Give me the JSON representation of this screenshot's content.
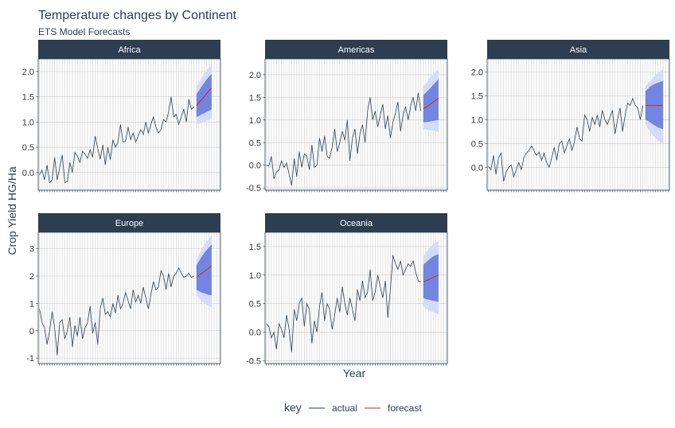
{
  "chart_data": {
    "type": "line",
    "title": "Temperature changes by Continent",
    "subtitle": "ETS Model Forecasts",
    "xlabel": "Year",
    "ylabel": "Crop Yield HG/Ha",
    "legend": {
      "position": "bottom",
      "title": "key",
      "entries": [
        {
          "label": "actual",
          "color": "#2c3e50"
        },
        {
          "label": "forecast",
          "color": "#e31a1c"
        }
      ]
    },
    "colors": {
      "actual": "#2c3e50",
      "forecast": "#e31a1c",
      "band80": "#7285e0",
      "band95": "#d4dbfb",
      "strip": "#2c3e50",
      "grid": "#cccccc"
    },
    "x_index": "year index 1-62 (tick labels not printed)",
    "panels": [
      {
        "name": "Africa",
        "ylim": [
          -0.35,
          2.25
        ],
        "yticks": [
          0.0,
          0.5,
          1.0,
          1.5,
          2.0
        ],
        "ytick_labels": [
          "0.0",
          "0.5",
          "1.0",
          "1.5",
          "2.0"
        ],
        "actual": [
          -0.05,
          0.05,
          -0.15,
          0.15,
          -0.2,
          -0.15,
          0.3,
          -0.15,
          0.1,
          0.35,
          -0.2,
          -0.18,
          0.2,
          0.0,
          0.4,
          0.32,
          0.2,
          0.42,
          0.36,
          0.28,
          0.45,
          0.3,
          0.72,
          0.48,
          0.26,
          0.55,
          0.15,
          0.5,
          0.25,
          0.65,
          0.5,
          0.6,
          0.95,
          0.6,
          0.62,
          0.9,
          0.65,
          0.78,
          0.6,
          0.72,
          0.85,
          0.75,
          1.0,
          0.78,
          0.95,
          1.1,
          0.9,
          0.78,
          0.85,
          1.05,
          1.0,
          1.2,
          1.5,
          1.1,
          1.15,
          0.95,
          1.1,
          1.25,
          1.0,
          1.45,
          1.25,
          1.3
        ],
        "forecast": [
          1.32,
          1.38,
          1.44,
          1.5,
          1.56,
          1.62,
          1.67
        ],
        "lo80": [
          1.1,
          1.12,
          1.15,
          1.17,
          1.2,
          1.22,
          1.25
        ],
        "hi80": [
          1.55,
          1.62,
          1.7,
          1.77,
          1.84,
          1.9,
          1.95
        ],
        "lo95": [
          0.95,
          0.97,
          0.98,
          1.0,
          1.02,
          1.04,
          1.05
        ],
        "hi95": [
          1.7,
          1.78,
          1.86,
          1.95,
          2.02,
          2.08,
          2.12
        ]
      },
      {
        "name": "Americas",
        "ylim": [
          -0.55,
          2.35
        ],
        "yticks": [
          -0.5,
          0.0,
          0.5,
          1.0,
          1.5,
          2.0
        ],
        "ytick_labels": [
          "-0.5",
          "0.0",
          "0.5",
          "1.0",
          "1.5",
          "2.0"
        ],
        "actual": [
          0.0,
          -0.02,
          0.2,
          -0.3,
          -0.15,
          -0.1,
          0.1,
          -0.05,
          0.05,
          -0.2,
          -0.45,
          0.15,
          -0.25,
          0.3,
          -0.05,
          0.25,
          0.2,
          -0.1,
          0.45,
          -0.05,
          0.0,
          0.6,
          0.3,
          0.65,
          0.2,
          0.15,
          0.4,
          0.8,
          0.3,
          0.5,
          0.75,
          0.55,
          1.0,
          0.1,
          0.6,
          0.8,
          0.25,
          0.7,
          0.9,
          0.5,
          1.2,
          1.5,
          1.0,
          1.2,
          0.85,
          1.1,
          1.35,
          0.8,
          1.1,
          0.6,
          0.95,
          1.15,
          1.4,
          0.75,
          1.1,
          1.3,
          1.0,
          1.3,
          1.5,
          1.2,
          1.6,
          1.2
        ],
        "forecast": [
          1.25,
          1.28,
          1.32,
          1.36,
          1.4,
          1.44,
          1.48
        ],
        "lo80": [
          0.95,
          0.95,
          0.96,
          0.97,
          0.98,
          0.99,
          1.0
        ],
        "hi80": [
          1.55,
          1.6,
          1.66,
          1.72,
          1.78,
          1.84,
          1.9
        ],
        "lo95": [
          0.8,
          0.79,
          0.78,
          0.77,
          0.76,
          0.75,
          0.74
        ],
        "hi95": [
          1.75,
          1.8,
          1.88,
          1.96,
          2.02,
          2.08,
          2.12
        ]
      },
      {
        "name": "Asia",
        "ylim": [
          -0.48,
          2.28
        ],
        "yticks": [
          0.0,
          0.5,
          1.0,
          1.5,
          2.0
        ],
        "ytick_labels": [
          "0.0",
          "0.5",
          "1.0",
          "1.5",
          "2.0"
        ],
        "actual": [
          0.02,
          -0.05,
          0.25,
          -0.15,
          0.2,
          0.3,
          -0.3,
          -0.1,
          0.0,
          0.05,
          -0.2,
          -0.05,
          0.1,
          -0.05,
          0.2,
          0.3,
          0.35,
          0.45,
          0.35,
          0.25,
          0.32,
          0.15,
          0.3,
          0.1,
          0.0,
          0.2,
          0.42,
          0.15,
          0.5,
          0.55,
          0.3,
          0.45,
          0.6,
          0.35,
          0.55,
          0.85,
          0.6,
          0.55,
          1.1,
          1.0,
          0.75,
          1.05,
          0.9,
          1.1,
          0.85,
          1.2,
          1.0,
          0.9,
          1.05,
          1.2,
          0.7,
          1.0,
          1.25,
          0.75,
          1.1,
          1.35,
          1.3,
          1.45,
          1.3,
          1.25,
          1.0,
          1.3
        ],
        "forecast": [
          1.3,
          1.3,
          1.3,
          1.3,
          1.3,
          1.3,
          1.3,
          1.3
        ],
        "lo80": [
          1.0,
          0.98,
          0.94,
          0.9,
          0.87,
          0.84,
          0.82,
          0.8
        ],
        "hi80": [
          1.6,
          1.65,
          1.7,
          1.73,
          1.76,
          1.78,
          1.8,
          1.82
        ],
        "lo95": [
          0.9,
          0.82,
          0.74,
          0.68,
          0.62,
          0.57,
          0.53,
          0.5
        ],
        "hi95": [
          1.7,
          1.76,
          1.82,
          1.88,
          1.94,
          1.99,
          2.03,
          2.06
        ]
      },
      {
        "name": "Europe",
        "ylim": [
          -1.2,
          3.6
        ],
        "yticks": [
          -1,
          0,
          1,
          2,
          3
        ],
        "ytick_labels": [
          "-1",
          "0",
          "1",
          "2",
          "3"
        ],
        "actual": [
          0.8,
          0.3,
          0.1,
          -0.5,
          0.0,
          0.7,
          0.1,
          -0.9,
          0.3,
          0.4,
          -0.3,
          0.0,
          0.5,
          -0.6,
          0.2,
          -0.2,
          0.5,
          -0.3,
          0.1,
          0.3,
          0.9,
          -0.1,
          0.3,
          -0.5,
          0.8,
          1.2,
          0.6,
          0.7,
          0.5,
          1.0,
          0.65,
          1.3,
          0.8,
          1.0,
          1.4,
          1.1,
          0.8,
          1.5,
          1.05,
          1.3,
          1.0,
          1.6,
          1.2,
          0.8,
          1.3,
          1.8,
          1.5,
          1.6,
          2.2,
          2.0,
          1.5,
          2.1,
          1.6,
          2.0,
          2.1,
          2.3,
          2.1,
          1.95,
          2.0,
          2.1,
          1.95,
          2.0
        ],
        "forecast": [
          1.95,
          2.02,
          2.09,
          2.16,
          2.23,
          2.3,
          2.37
        ],
        "lo80": [
          1.5,
          1.45,
          1.4,
          1.37,
          1.34,
          1.31,
          1.3
        ],
        "hi80": [
          2.4,
          2.55,
          2.7,
          2.83,
          2.95,
          3.05,
          3.15
        ],
        "lo95": [
          1.3,
          1.2,
          1.1,
          1.0,
          0.95,
          0.9,
          0.85
        ],
        "hi95": [
          2.6,
          2.78,
          2.96,
          3.12,
          3.26,
          3.38,
          3.5
        ]
      },
      {
        "name": "Oceania",
        "ylim": [
          -0.55,
          1.75
        ],
        "yticks": [
          -0.5,
          0.0,
          0.5,
          1.0,
          1.5
        ],
        "ytick_labels": [
          "-0.5",
          "0.0",
          "0.5",
          "1.0",
          "1.5"
        ],
        "actual": [
          0.15,
          0.1,
          -0.1,
          0.0,
          -0.3,
          0.15,
          0.05,
          -0.1,
          0.3,
          0.05,
          -0.35,
          0.4,
          0.2,
          0.5,
          0.6,
          0.1,
          0.5,
          0.4,
          -0.2,
          0.2,
          0.0,
          0.45,
          0.7,
          0.2,
          0.5,
          0.4,
          0.05,
          0.3,
          0.6,
          0.35,
          0.8,
          0.5,
          0.3,
          0.6,
          0.4,
          0.2,
          0.75,
          0.55,
          0.9,
          0.6,
          0.7,
          1.1,
          0.55,
          0.7,
          1.0,
          0.8,
          0.6,
          0.9,
          0.25,
          0.75,
          1.35,
          1.2,
          1.1,
          1.25,
          1.0,
          1.1,
          1.2,
          1.15,
          1.25,
          1.05,
          0.9,
          0.88
        ],
        "forecast": [
          0.88,
          0.9,
          0.92,
          0.94,
          0.96,
          0.98,
          1.0
        ],
        "lo80": [
          0.6,
          0.58,
          0.57,
          0.56,
          0.55,
          0.54,
          0.53
        ],
        "hi80": [
          1.18,
          1.22,
          1.26,
          1.3,
          1.33,
          1.35,
          1.37
        ],
        "lo95": [
          0.45,
          0.42,
          0.39,
          0.37,
          0.35,
          0.33,
          0.31
        ],
        "hi95": [
          1.33,
          1.39,
          1.45,
          1.5,
          1.54,
          1.57,
          1.6
        ]
      }
    ]
  }
}
